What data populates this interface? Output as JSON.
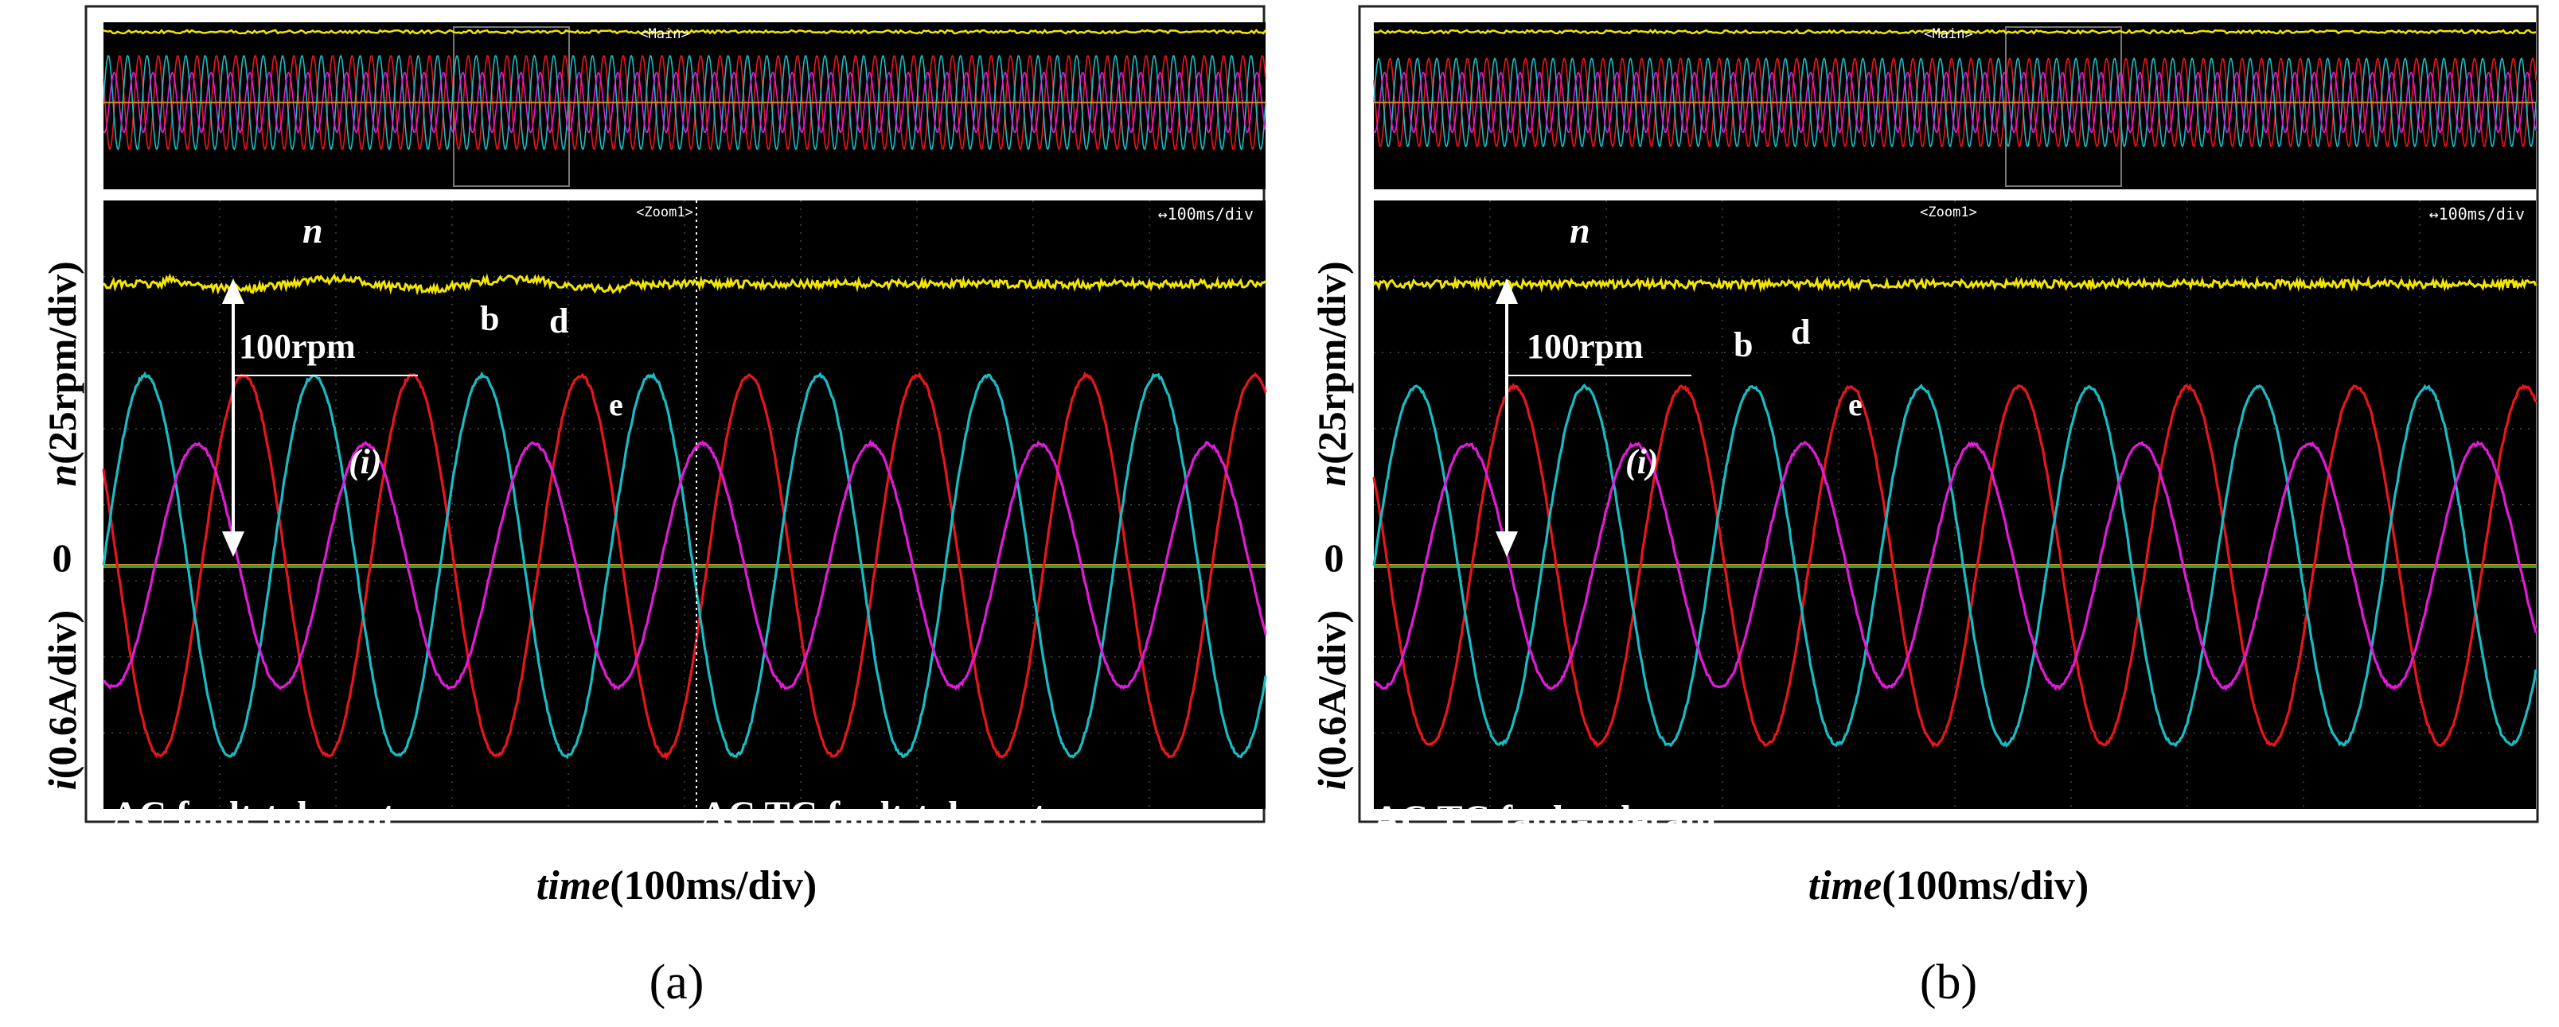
{
  "figure": {
    "panels": [
      {
        "caption_letter": "a",
        "main_label": "<Main>",
        "zoom_label": "<Zoom1>",
        "timebase": "↔100ms/div",
        "y_label_n": "n(25rpm/div)",
        "y_label_i": "i(0.6A/div)",
        "x_label": "time(100ms/div)",
        "zero_label": "0",
        "n_label": "n",
        "i_label": "(i)",
        "rpm_label": "100rpm",
        "trace_b": "b",
        "trace_d": "d",
        "trace_e": "e",
        "mode_left": "AC fault-tolerant",
        "mode_right": "AC TC fault-tolerant",
        "fault_switch_fraction": 0.5
      },
      {
        "caption_letter": "b",
        "main_label": "<Main>",
        "zoom_label": "<Zoom1>",
        "timebase": "↔100ms/div",
        "y_label_n": "n(25rpm/div)",
        "y_label_i": "i(0.6A/div)",
        "x_label": "time(100ms/div)",
        "zero_label": "0",
        "n_label": "n",
        "i_label": "(i)",
        "rpm_label": "100rpm",
        "trace_b": "b",
        "trace_d": "d",
        "trace_e": "e",
        "mode_left": "AC TC fault-tolerant",
        "mode_right": "",
        "fault_switch_fraction": null
      }
    ]
  },
  "chart_data": [
    {
      "type": "line",
      "panel": "a",
      "title": "",
      "xlabel": "time(100ms/div)",
      "ylabel": [
        "n(25rpm/div)",
        "i(0.6A/div)"
      ],
      "x_divisions": 10,
      "y_divisions": 8,
      "speed_offset_div": 3.7,
      "speed_step_rpm": 100,
      "series": [
        {
          "name": "b",
          "color": "#e8161b",
          "cycles": 6.9,
          "amp_div_before": 2.5,
          "amp_div_after": 2.5,
          "phase_deg": 150
        },
        {
          "name": "d",
          "color": "#18bcc4",
          "cycles": 6.9,
          "amp_div_before": 2.5,
          "amp_div_after": 2.5,
          "phase_deg": 0
        },
        {
          "name": "e",
          "color": "#e21ad9",
          "cycles": 6.9,
          "amp_div_before": 1.6,
          "amp_div_after": 1.6,
          "phase_deg": 250
        },
        {
          "name": "n",
          "color": "#f2e600",
          "level_div": 3.7
        }
      ]
    },
    {
      "type": "line",
      "panel": "b",
      "title": "",
      "xlabel": "time(100ms/div)",
      "ylabel": [
        "n(25rpm/div)",
        "i(0.6A/div)"
      ],
      "x_divisions": 10,
      "y_divisions": 8,
      "speed_offset_div": 3.7,
      "speed_step_rpm": 100,
      "series": [
        {
          "name": "b",
          "color": "#e8161b",
          "cycles": 6.9,
          "amp_div_before": 2.35,
          "amp_div_after": 2.35,
          "phase_deg": 150
        },
        {
          "name": "d",
          "color": "#18bcc4",
          "cycles": 6.9,
          "amp_div_before": 2.35,
          "amp_div_after": 2.35,
          "phase_deg": 0
        },
        {
          "name": "e",
          "color": "#e21ad9",
          "cycles": 6.9,
          "amp_div_before": 1.6,
          "amp_div_after": 1.6,
          "phase_deg": 250
        },
        {
          "name": "n",
          "color": "#f2e600",
          "level_div": 3.7
        }
      ]
    }
  ]
}
